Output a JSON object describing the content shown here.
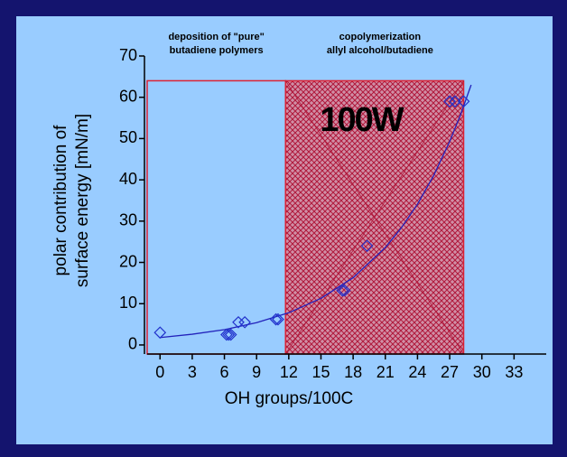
{
  "chart_data": {
    "type": "scatter",
    "xlabel": "OH groups/100C",
    "ylabel": [
      "polar contribution of",
      "surface energy [mN/m]"
    ],
    "annotation": "100W",
    "xlim": [
      -1.2,
      36
    ],
    "ylim": [
      -2.2,
      70
    ],
    "xticks": [
      0,
      3,
      6,
      9,
      12,
      15,
      18,
      21,
      24,
      27,
      30,
      33
    ],
    "yticks": [
      0,
      10,
      20,
      30,
      40,
      50,
      60,
      70
    ],
    "points": {
      "color": "#2233cc",
      "x": [
        0,
        6.2,
        6.4,
        6.6,
        7.3,
        7.9,
        10.8,
        11,
        17,
        17.2,
        19.3,
        27,
        27.5,
        28.3
      ],
      "values": [
        3,
        2.5,
        2.5,
        2.5,
        5.5,
        5.5,
        6.2,
        6.2,
        13.2,
        13.2,
        24,
        59,
        59,
        59
      ]
    },
    "fit": {
      "color": "#2222bb",
      "x": [
        0,
        3,
        6,
        9,
        12,
        15,
        18,
        21,
        22.5,
        24,
        25.5,
        27,
        28,
        29
      ],
      "values": [
        1.8,
        2.6,
        3.7,
        5.4,
        7.8,
        11.3,
        16.3,
        23.6,
        28.4,
        34.1,
        41,
        49.3,
        55.7,
        63
      ]
    },
    "regions": [
      {
        "label": [
          "deposition of \"pure\"",
          "butadiene polymers"
        ],
        "xrange": [
          -1.2,
          11.7
        ],
        "ytop": 64,
        "hatch": false
      },
      {
        "label": [
          "copolymerization",
          "allyl alcohol/butadiene"
        ],
        "xrange": [
          11.7,
          28.3
        ],
        "ytop": 64,
        "hatch": true
      }
    ]
  }
}
